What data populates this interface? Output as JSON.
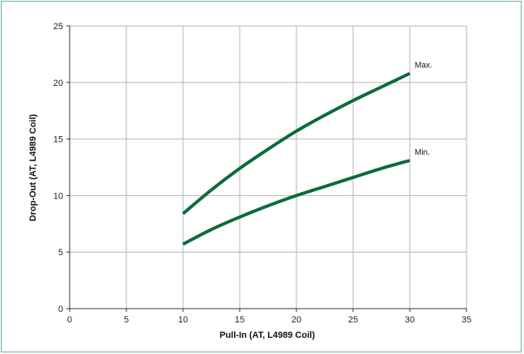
{
  "chart_data": {
    "type": "line",
    "xlabel": "Pull-In (AT, L4989 Coil)",
    "ylabel": "Drop-Out (AT, L4989 Coil)",
    "xlim": [
      0,
      35
    ],
    "ylim": [
      0,
      25
    ],
    "xticks": [
      0,
      5,
      10,
      15,
      20,
      25,
      30,
      35
    ],
    "yticks": [
      0,
      5,
      10,
      15,
      20,
      25
    ],
    "grid": true,
    "legend": "none",
    "series": [
      {
        "name": "Max.",
        "color": "#0b6b3a",
        "x": [
          10,
          12.5,
          15,
          17.5,
          20,
          22.5,
          25,
          27.5,
          30
        ],
        "y": [
          8.4,
          10.5,
          12.4,
          14.1,
          15.7,
          17.1,
          18.4,
          19.6,
          20.8
        ]
      },
      {
        "name": "Min.",
        "color": "#0b6b3a",
        "x": [
          10,
          12.5,
          15,
          17.5,
          20,
          22.5,
          25,
          27.5,
          30
        ],
        "y": [
          5.7,
          7.0,
          8.1,
          9.1,
          10.0,
          10.8,
          11.6,
          12.4,
          13.1
        ]
      }
    ]
  }
}
